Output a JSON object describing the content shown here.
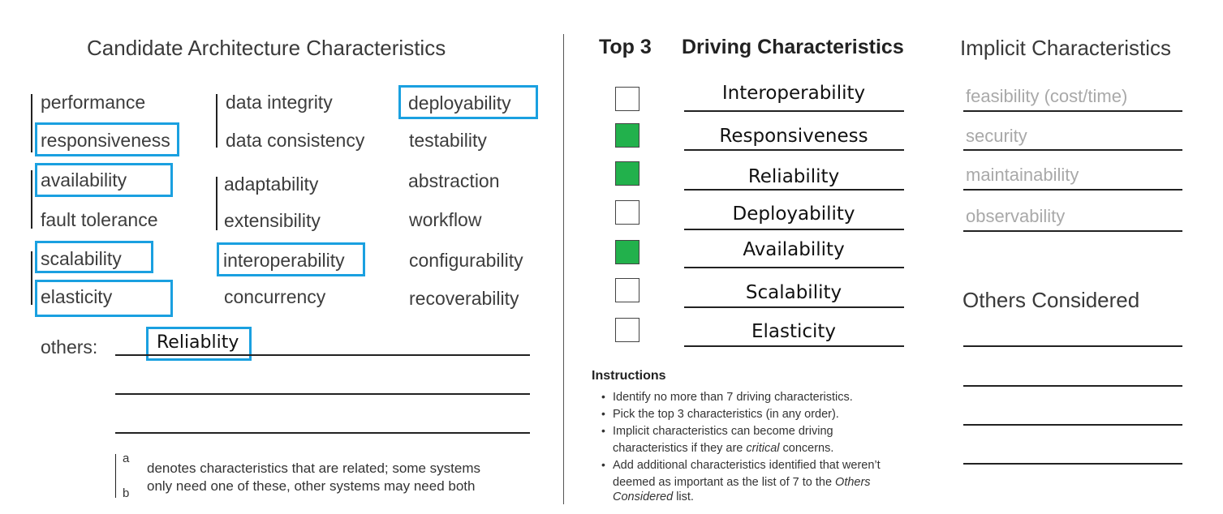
{
  "candidate": {
    "title": "Candidate Architecture Characteristics",
    "col1": [
      "performance",
      "responsiveness",
      "availability",
      "fault tolerance",
      "scalability",
      "elasticity"
    ],
    "col2": [
      "data integrity",
      "data consistency",
      "adaptability",
      "extensibility",
      "interoperability",
      "concurrency"
    ],
    "col3": [
      "deployability",
      "testability",
      "abstraction",
      "workflow",
      "configurability",
      "recoverability"
    ],
    "others_label": "others:",
    "others_value": "Reliablity",
    "note_a": "a",
    "note_b": "b",
    "note_line1": "denotes characteristics that are related; some systems",
    "note_line2": "only need one of these, other systems may need both",
    "highlighted": [
      "responsiveness",
      "availability",
      "scalability",
      "elasticity",
      "interoperability",
      "deployability",
      "Reliablity"
    ],
    "highlight_color": "#1aa0e0"
  },
  "driving": {
    "top3_label": "Top 3",
    "title": "Driving Characteristics",
    "items": [
      {
        "label": "Interoperability",
        "checked": false
      },
      {
        "label": "Responsiveness",
        "checked": true
      },
      {
        "label": "Reliability",
        "checked": true
      },
      {
        "label": "Deployability",
        "checked": false
      },
      {
        "label": "Availability",
        "checked": true
      },
      {
        "label": "Scalability",
        "checked": false
      },
      {
        "label": "Elasticity",
        "checked": false
      }
    ],
    "check_color": "#22b14c"
  },
  "instructions": {
    "title": "Instructions",
    "b1": "Identify no more than 7 driving characteristics.",
    "b2": "Pick the top 3 characteristics (in any order).",
    "b3_l1": "Implicit characteristics can become driving",
    "b3_l2a": "characteristics if they are ",
    "b3_l2em": "critical",
    "b3_l2b": " concerns.",
    "b4_l1": "Add additional characteristics identified that weren’t",
    "b4_l2a": "deemed as important as the list of 7 to the ",
    "b4_l2em": "Others",
    "b4_l3em": "Considered",
    "b4_l3b": " list."
  },
  "implicit": {
    "title": "Implicit Characteristics",
    "items": [
      "feasibility (cost/time)",
      "security",
      "maintainability",
      "observability"
    ]
  },
  "others_considered": {
    "title": "Others Considered"
  }
}
